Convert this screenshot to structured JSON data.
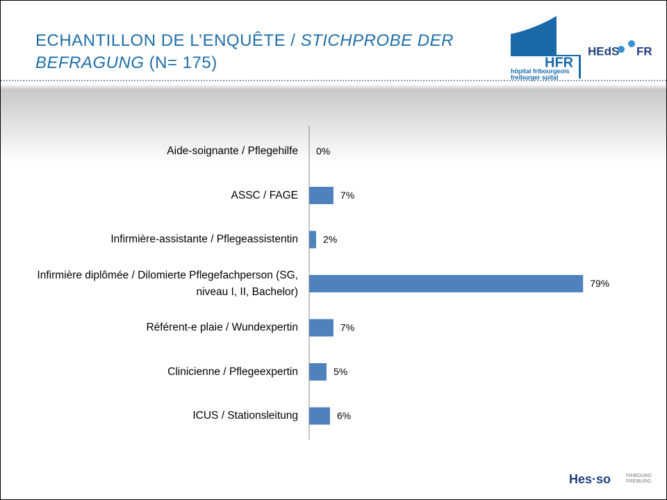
{
  "title_parts": [
    "ECHANTILLON DE L’ENQUÊTE / ",
    "STICHPROBE DER",
    "BEFRAGUNG",
    " (N= 175)"
  ],
  "logos": {
    "hfr": "HFR",
    "hfr_line1": "hôpital fribourgeois",
    "hfr_line2": "freiburger spital",
    "heds": "HEdS",
    "heds_fr": "FR",
    "hesso": "Hes·so",
    "hesso_city1": "FRIBOURG",
    "hesso_city2": "FREIBURG"
  },
  "chart_data": {
    "type": "bar",
    "orientation": "horizontal",
    "color": "#4f81bd",
    "categories": [
      "Aide-soignante / Pflegehilfe",
      "ASSC / FAGE",
      "Infirmière-assistante / Pflegeassistentin",
      "Infirmière diplômée / Dilomierte Pflegefachperson (SG, niveau I, II, Bachelor)",
      "Référent-e plaie / Wundexpertin",
      "Clinicienne / Pflegeexpertin",
      "ICUS / Stationsleitung"
    ],
    "values": [
      0,
      7,
      2,
      79,
      7,
      5,
      6
    ],
    "value_labels": [
      "0%",
      "7%",
      "2%",
      "79%",
      "7%",
      "5%",
      "6%"
    ]
  }
}
